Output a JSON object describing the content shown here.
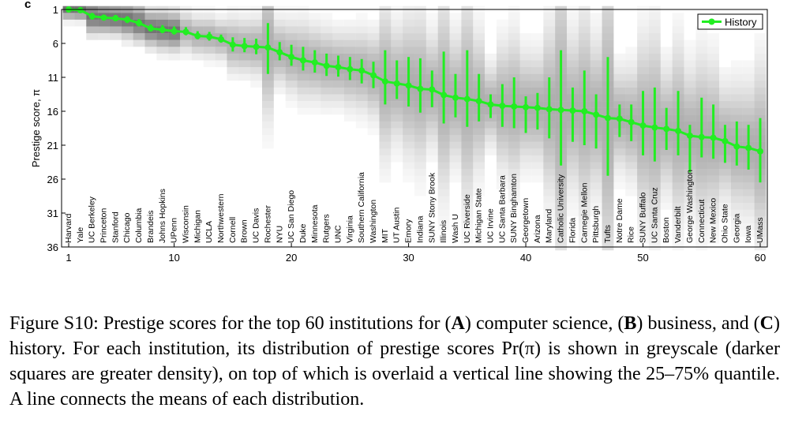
{
  "panel_letter": "c",
  "caption": {
    "label": "Figure S10:",
    "text_1": " Prestige scores for the top 60 institutions for (",
    "a": "A",
    "text_2": ") computer science, (",
    "b": "B",
    "text_3": ") business, and (",
    "c": "C",
    "text_4": ") history. For each institution, its distribution of prestige scores Pr(π) is shown in greyscale (darker squares are greater density), on top of which is overlaid a vertical line showing the 25–75% quantile. A line connects the means of each distribution."
  },
  "chart_data": {
    "type": "line",
    "title": "",
    "xlabel": "",
    "ylabel": "Prestige score, π",
    "x_range": [
      1,
      60
    ],
    "y_range": [
      36,
      1
    ],
    "y_inverted": true,
    "x_ticks": [
      1,
      10,
      20,
      30,
      40,
      50,
      60
    ],
    "y_ticks": [
      1,
      6,
      11,
      16,
      21,
      26,
      31,
      36
    ],
    "legend": {
      "position": "top-right",
      "entries": [
        "History"
      ]
    },
    "colors": {
      "series": "#22ee22",
      "density": "#000000",
      "axis": "#000000"
    },
    "series": [
      {
        "name": "History",
        "institutions": [
          "Harvard",
          "Yale",
          "UC Berkeley",
          "Princeton",
          "Stanford",
          "Chicago",
          "Columbia",
          "Brandeis",
          "Johns Hopkins",
          "UPenn",
          "Wisconsin",
          "Michigan",
          "UCLA",
          "Northwestern",
          "Cornell",
          "Brown",
          "UC Davis",
          "Rochester",
          "NYU",
          "UC San Diego",
          "Duke",
          "Minnesota",
          "Rutgers",
          "UNC",
          "Virginia",
          "Southern California",
          "Washington",
          "MIT",
          "UT Austin",
          "Emory",
          "Indiana",
          "SUNY Stony Brook",
          "Illinois",
          "Wash U",
          "UC Riverside",
          "Michigan State",
          "UC Irvine",
          "UC Santa Barbara",
          "SUNY Binghamton",
          "Georgetown",
          "Arizona",
          "Maryland",
          "Catholic University",
          "Florida",
          "Carnegie Mellon",
          "Pittsburgh",
          "Tufts",
          "Notre Dame",
          "Rice",
          "SUNY Buffalo",
          "UC Santa Cruz",
          "Boston",
          "Vanderbilt",
          "George Washington",
          "Connecticut",
          "New Mexico",
          "Ohio State",
          "Georgia",
          "Iowa",
          "UMass"
        ],
        "mean": [
          1.0,
          1.1,
          2.0,
          2.2,
          2.3,
          2.5,
          3.0,
          3.8,
          4.0,
          4.2,
          4.3,
          4.9,
          5.0,
          5.4,
          6.2,
          6.4,
          6.5,
          6.6,
          7.3,
          8.0,
          8.5,
          8.8,
          9.3,
          9.5,
          9.8,
          10.0,
          10.7,
          11.6,
          11.9,
          12.2,
          12.7,
          12.8,
          13.6,
          14.0,
          14.2,
          14.5,
          15.0,
          15.2,
          15.3,
          15.4,
          15.5,
          15.7,
          15.8,
          15.9,
          16.0,
          16.5,
          17.0,
          17.1,
          17.6,
          18.1,
          18.4,
          18.6,
          18.9,
          19.6,
          19.8,
          19.9,
          20.4,
          21.2,
          21.4,
          21.9
        ],
        "q25": [
          1.0,
          1.0,
          1.5,
          1.8,
          1.8,
          2.0,
          2.4,
          3.2,
          3.3,
          3.5,
          3.6,
          4.2,
          4.3,
          4.7,
          5.1,
          5.2,
          5.3,
          3.0,
          5.8,
          6.2,
          6.5,
          7.0,
          7.5,
          7.8,
          8.0,
          8.3,
          8.7,
          7.0,
          8.5,
          8.0,
          8.2,
          10.0,
          7.2,
          10.5,
          7.0,
          10.5,
          13.5,
          12.0,
          11.0,
          13.8,
          13.3,
          11.0,
          7.0,
          12.5,
          10.0,
          13.5,
          8.0,
          15.0,
          15.0,
          13.0,
          12.5,
          15.5,
          13.0,
          18.0,
          14.0,
          15.0,
          18.0,
          17.5,
          18.0,
          17.0
        ],
        "q75": [
          1.0,
          1.0,
          2.5,
          2.6,
          2.6,
          3.0,
          3.5,
          4.2,
          4.5,
          4.7,
          4.8,
          5.4,
          5.6,
          5.9,
          7.2,
          7.3,
          7.6,
          10.5,
          8.5,
          9.3,
          10.0,
          10.3,
          10.8,
          10.9,
          11.4,
          11.9,
          12.6,
          15.0,
          14.2,
          15.3,
          16.2,
          15.4,
          17.8,
          16.9,
          18.3,
          17.5,
          17.0,
          18.3,
          18.5,
          19.2,
          18.7,
          20.0,
          24.0,
          20.5,
          21.0,
          21.5,
          25.5,
          19.8,
          20.4,
          22.5,
          23.4,
          21.7,
          22.5,
          25.0,
          22.8,
          23.0,
          23.6,
          24.0,
          24.6,
          26.5
        ]
      }
    ]
  }
}
